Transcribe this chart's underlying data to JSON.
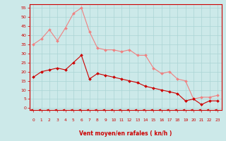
{
  "x": [
    0,
    1,
    2,
    3,
    4,
    5,
    6,
    7,
    8,
    9,
    10,
    11,
    12,
    13,
    14,
    15,
    16,
    17,
    18,
    19,
    20,
    21,
    22,
    23
  ],
  "rafales": [
    35,
    38,
    43,
    37,
    44,
    52,
    55,
    42,
    33,
    32,
    32,
    31,
    32,
    29,
    29,
    22,
    19,
    20,
    16,
    15,
    5,
    6,
    6,
    7
  ],
  "moyen": [
    17,
    20,
    21,
    22,
    21,
    25,
    29,
    16,
    19,
    18,
    17,
    16,
    15,
    14,
    12,
    11,
    10,
    9,
    8,
    4,
    5,
    2,
    4,
    4
  ],
  "bg_color": "#cce9e9",
  "line_color_rafales": "#f08080",
  "line_color_moyen": "#cc0000",
  "marker_color_rafales": "#f08080",
  "marker_color_moyen": "#cc0000",
  "xlabel": "Vent moyen/en rafales ( kn/h )",
  "ylabel_ticks": [
    0,
    5,
    10,
    15,
    20,
    25,
    30,
    35,
    40,
    45,
    50,
    55
  ],
  "ylim": [
    -1,
    57
  ],
  "xlim": [
    -0.5,
    23.5
  ],
  "tick_color": "#cc0000",
  "xlabel_color": "#cc0000",
  "grid_line_color": "#aad4d4"
}
